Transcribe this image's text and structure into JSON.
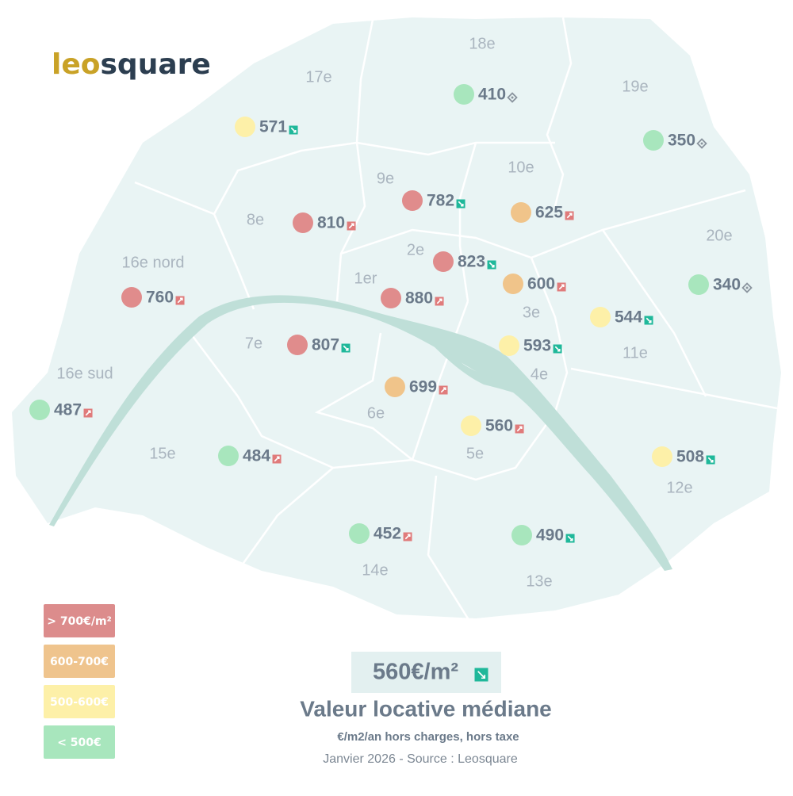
{
  "logo": {
    "first": "leo",
    "second": "square"
  },
  "districts": [
    "18e",
    "17e",
    "19e",
    "10e",
    "9e",
    "8e",
    "20e",
    "2e",
    "16e nord",
    "1er",
    "3e",
    "7e",
    "11e",
    "4e",
    "16e sud",
    "6e",
    "15e",
    "5e",
    "12e",
    "14e",
    "13e"
  ],
  "points": [
    {
      "value": 410,
      "color": "#a8e6bd",
      "trend": "flat"
    },
    {
      "value": 350,
      "color": "#a8e6bd",
      "trend": "flat"
    },
    {
      "value": 340,
      "color": "#a8e6bd",
      "trend": "flat"
    },
    {
      "value": 571,
      "color": "#fdf0a8",
      "trend": "down"
    },
    {
      "value": 782,
      "color": "#e08c8c",
      "trend": "down"
    },
    {
      "value": 625,
      "color": "#f0c48a",
      "trend": "up"
    },
    {
      "value": 810,
      "color": "#e08c8c",
      "trend": "up"
    },
    {
      "value": 823,
      "color": "#e08c8c",
      "trend": "down"
    },
    {
      "value": 600,
      "color": "#f0c48a",
      "trend": "up"
    },
    {
      "value": 760,
      "color": "#e08c8c",
      "trend": "up"
    },
    {
      "value": 880,
      "color": "#e08c8c",
      "trend": "up"
    },
    {
      "value": 544,
      "color": "#fdf0a8",
      "trend": "down"
    },
    {
      "value": 807,
      "color": "#e08c8c",
      "trend": "down"
    },
    {
      "value": 593,
      "color": "#fdf0a8",
      "trend": "down"
    },
    {
      "value": 487,
      "color": "#a8e6bd",
      "trend": "up"
    },
    {
      "value": 699,
      "color": "#f0c48a",
      "trend": "up"
    },
    {
      "value": 560,
      "color": "#fdf0a8",
      "trend": "up"
    },
    {
      "value": 484,
      "color": "#a8e6bd",
      "trend": "up"
    },
    {
      "value": 508,
      "color": "#fdf0a8",
      "trend": "down"
    },
    {
      "value": 452,
      "color": "#a8e6bd",
      "trend": "up"
    },
    {
      "value": 490,
      "color": "#a8e6bd",
      "trend": "down"
    }
  ],
  "legend": [
    {
      "label": "> 700€/m²",
      "color": "#dc8c8c"
    },
    {
      "label": "600-700€",
      "color": "#efc48d"
    },
    {
      "label": "500-600€",
      "color": "#fdf0a8"
    },
    {
      "label": "< 500€",
      "color": "#a8e6bd"
    }
  ],
  "summary": {
    "value": "560€/m²",
    "trend": "down",
    "title": "Valeur locative médiane",
    "subtitle": "€/m2/an hors charges, hors taxe",
    "source": "Janvier 2026 - Source : Leosquare"
  }
}
